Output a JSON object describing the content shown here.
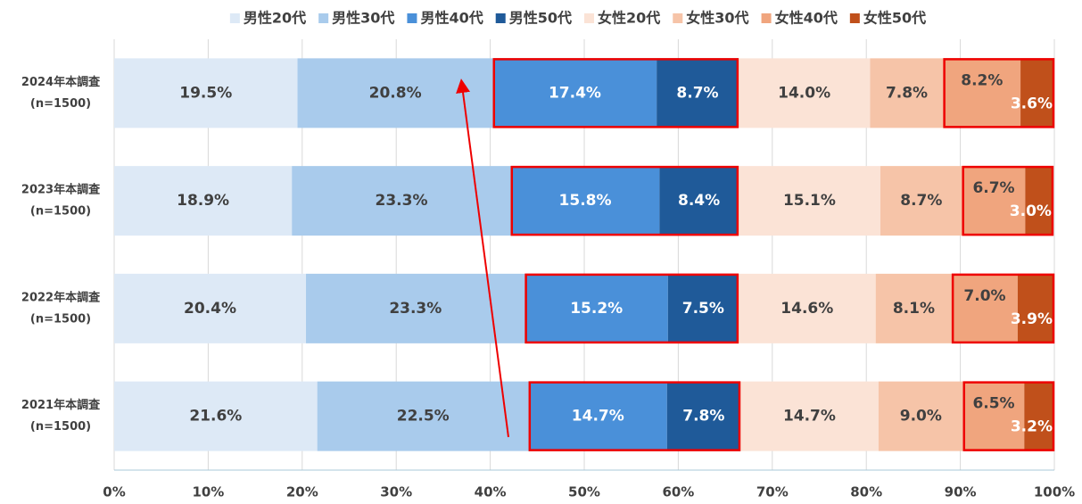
{
  "chart_data": {
    "type": "bar",
    "orientation": "horizontal",
    "stacked": true,
    "categories": [
      [
        "2024年本調査",
        "(n=1500)"
      ],
      [
        "2023年本調査",
        "(n=1500)"
      ],
      [
        "2022年本調査",
        "(n=1500)"
      ],
      [
        "2021年本調査",
        "(n=1500)"
      ]
    ],
    "series": [
      {
        "name": "男性20代",
        "color": "#dde9f6",
        "values": [
          19.5,
          18.9,
          20.4,
          21.6
        ],
        "value_labels": [
          "19.5%",
          "18.9%",
          "20.4%",
          "21.6%"
        ]
      },
      {
        "name": "男性30代",
        "color": "#a9cbec",
        "values": [
          20.8,
          23.3,
          23.3,
          22.5
        ],
        "value_labels": [
          "20.8%",
          "23.3%",
          "23.3%",
          "22.5%"
        ]
      },
      {
        "name": "男性40代",
        "color": "#4a90d9",
        "values": [
          17.4,
          15.8,
          15.2,
          14.7
        ],
        "value_labels": [
          "17.4%",
          "15.8%",
          "15.2%",
          "14.7%"
        ]
      },
      {
        "name": "男性50代",
        "color": "#1f5a99",
        "values": [
          8.7,
          8.4,
          7.5,
          7.8
        ],
        "value_labels": [
          "8.7%",
          "8.4%",
          "7.5%",
          "7.8%"
        ]
      },
      {
        "name": "女性20代",
        "color": "#fbe3d6",
        "values": [
          14.0,
          15.1,
          14.6,
          14.7
        ],
        "value_labels": [
          "14.0%",
          "15.1%",
          "14.6%",
          "14.7%"
        ]
      },
      {
        "name": "女性30代",
        "color": "#f6c4a8",
        "values": [
          7.8,
          8.7,
          8.1,
          9.0
        ],
        "value_labels": [
          "7.8%",
          "8.7%",
          "8.1%",
          "9.0%"
        ]
      },
      {
        "name": "女性40代",
        "color": "#f0a57e",
        "values": [
          8.2,
          6.7,
          7.0,
          6.5
        ],
        "value_labels": [
          "8.2%",
          "6.7%",
          "7.0%",
          "6.5%"
        ]
      },
      {
        "name": "女性50代",
        "color": "#c0501b",
        "values": [
          3.6,
          3.0,
          3.9,
          3.2
        ],
        "value_labels": [
          "3.6%",
          "3.0%",
          "3.9%",
          "3.2%"
        ]
      }
    ],
    "xlim": [
      0,
      100
    ],
    "xticks": [
      {
        "value": 0,
        "label": "0%"
      },
      {
        "value": 10,
        "label": "10%"
      },
      {
        "value": 20,
        "label": "20%"
      },
      {
        "value": 30,
        "label": "30%"
      },
      {
        "value": 40,
        "label": "40%"
      },
      {
        "value": 50,
        "label": "50%"
      },
      {
        "value": 60,
        "label": "60%"
      },
      {
        "value": 70,
        "label": "70%"
      },
      {
        "value": 80,
        "label": "80%"
      },
      {
        "value": 90,
        "label": "90%"
      },
      {
        "value": 100,
        "label": "100%"
      }
    ],
    "grid": true,
    "legend": "top"
  }
}
